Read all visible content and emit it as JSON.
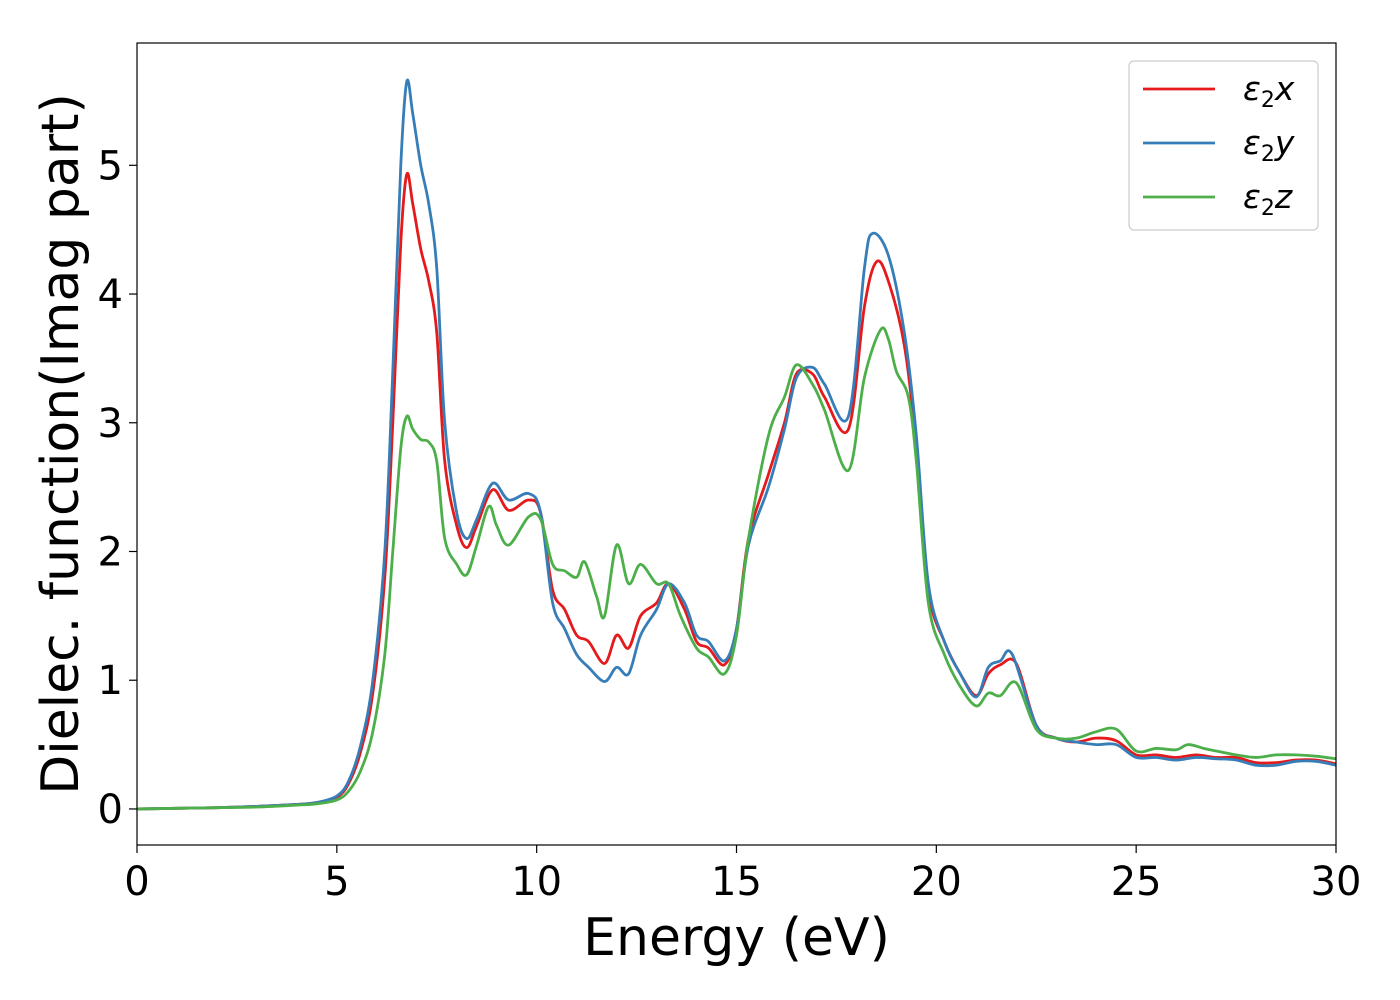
{
  "chart_data": {
    "type": "line",
    "xlabel": "Energy (eV)",
    "ylabel": "Dielec. function(Imag part)",
    "xlim": [
      0,
      30
    ],
    "ylim": [
      -0.28,
      5.95
    ],
    "xticks": [
      0,
      5,
      10,
      15,
      20,
      25,
      30
    ],
    "yticks": [
      0,
      1,
      2,
      3,
      4,
      5
    ],
    "grid": false,
    "legend_position": "top-right",
    "series": [
      {
        "name": "ε2x",
        "legend": {
          "base": "ε",
          "sub": "2",
          "comp": "x"
        },
        "color": "#e41a1c",
        "points": [
          [
            0,
            0.0
          ],
          [
            1,
            0.005
          ],
          [
            2,
            0.01
          ],
          [
            3,
            0.02
          ],
          [
            4,
            0.035
          ],
          [
            4.5,
            0.05
          ],
          [
            5,
            0.09
          ],
          [
            5.3,
            0.2
          ],
          [
            5.6,
            0.45
          ],
          [
            5.9,
            0.9
          ],
          [
            6.2,
            1.8
          ],
          [
            6.4,
            3.0
          ],
          [
            6.6,
            4.4
          ],
          [
            6.75,
            4.93
          ],
          [
            6.9,
            4.7
          ],
          [
            7.1,
            4.35
          ],
          [
            7.3,
            4.1
          ],
          [
            7.5,
            3.7
          ],
          [
            7.7,
            2.7
          ],
          [
            8.0,
            2.2
          ],
          [
            8.25,
            2.03
          ],
          [
            8.5,
            2.2
          ],
          [
            8.9,
            2.48
          ],
          [
            9.3,
            2.32
          ],
          [
            9.8,
            2.4
          ],
          [
            10.1,
            2.3
          ],
          [
            10.4,
            1.7
          ],
          [
            10.7,
            1.55
          ],
          [
            11.0,
            1.35
          ],
          [
            11.3,
            1.3
          ],
          [
            11.7,
            1.13
          ],
          [
            12.0,
            1.35
          ],
          [
            12.3,
            1.25
          ],
          [
            12.6,
            1.5
          ],
          [
            13.0,
            1.6
          ],
          [
            13.3,
            1.75
          ],
          [
            13.7,
            1.55
          ],
          [
            14.0,
            1.3
          ],
          [
            14.3,
            1.25
          ],
          [
            14.7,
            1.12
          ],
          [
            15.0,
            1.4
          ],
          [
            15.3,
            2.1
          ],
          [
            15.8,
            2.6
          ],
          [
            16.2,
            3.0
          ],
          [
            16.5,
            3.38
          ],
          [
            16.9,
            3.38
          ],
          [
            17.2,
            3.2
          ],
          [
            17.8,
            2.95
          ],
          [
            18.2,
            3.9
          ],
          [
            18.5,
            4.25
          ],
          [
            18.8,
            4.1
          ],
          [
            19.2,
            3.6
          ],
          [
            19.5,
            2.8
          ],
          [
            19.8,
            1.7
          ],
          [
            20.2,
            1.3
          ],
          [
            20.6,
            1.05
          ],
          [
            21.0,
            0.88
          ],
          [
            21.3,
            1.05
          ],
          [
            21.6,
            1.12
          ],
          [
            22.0,
            1.13
          ],
          [
            22.5,
            0.65
          ],
          [
            23.0,
            0.55
          ],
          [
            23.5,
            0.52
          ],
          [
            24.0,
            0.55
          ],
          [
            24.5,
            0.53
          ],
          [
            25.0,
            0.42
          ],
          [
            25.5,
            0.42
          ],
          [
            26.0,
            0.4
          ],
          [
            26.5,
            0.42
          ],
          [
            27.0,
            0.4
          ],
          [
            27.5,
            0.4
          ],
          [
            28.0,
            0.36
          ],
          [
            28.5,
            0.36
          ],
          [
            29.0,
            0.38
          ],
          [
            29.5,
            0.38
          ],
          [
            30,
            0.35
          ]
        ]
      },
      {
        "name": "ε2y",
        "legend": {
          "base": "ε",
          "sub": "2",
          "comp": "y"
        },
        "color": "#377eb8",
        "points": [
          [
            0,
            0.0
          ],
          [
            1,
            0.005
          ],
          [
            2,
            0.01
          ],
          [
            3,
            0.02
          ],
          [
            4,
            0.035
          ],
          [
            4.5,
            0.05
          ],
          [
            5,
            0.1
          ],
          [
            5.3,
            0.22
          ],
          [
            5.6,
            0.5
          ],
          [
            5.9,
            1.0
          ],
          [
            6.2,
            2.0
          ],
          [
            6.4,
            3.4
          ],
          [
            6.6,
            5.0
          ],
          [
            6.75,
            5.65
          ],
          [
            6.9,
            5.4
          ],
          [
            7.1,
            5.0
          ],
          [
            7.3,
            4.7
          ],
          [
            7.5,
            4.2
          ],
          [
            7.7,
            3.0
          ],
          [
            8.0,
            2.3
          ],
          [
            8.25,
            2.1
          ],
          [
            8.5,
            2.25
          ],
          [
            8.9,
            2.53
          ],
          [
            9.3,
            2.4
          ],
          [
            9.8,
            2.45
          ],
          [
            10.1,
            2.3
          ],
          [
            10.4,
            1.6
          ],
          [
            10.7,
            1.4
          ],
          [
            11.0,
            1.2
          ],
          [
            11.3,
            1.1
          ],
          [
            11.7,
            0.99
          ],
          [
            12.0,
            1.1
          ],
          [
            12.3,
            1.05
          ],
          [
            12.6,
            1.35
          ],
          [
            13.0,
            1.55
          ],
          [
            13.3,
            1.75
          ],
          [
            13.7,
            1.6
          ],
          [
            14.0,
            1.35
          ],
          [
            14.3,
            1.3
          ],
          [
            14.7,
            1.15
          ],
          [
            15.0,
            1.4
          ],
          [
            15.3,
            2.05
          ],
          [
            15.8,
            2.5
          ],
          [
            16.2,
            2.95
          ],
          [
            16.5,
            3.35
          ],
          [
            16.9,
            3.43
          ],
          [
            17.2,
            3.3
          ],
          [
            17.8,
            3.05
          ],
          [
            18.2,
            4.2
          ],
          [
            18.4,
            4.47
          ],
          [
            18.8,
            4.3
          ],
          [
            19.2,
            3.7
          ],
          [
            19.5,
            2.9
          ],
          [
            19.8,
            1.75
          ],
          [
            20.2,
            1.3
          ],
          [
            20.6,
            1.05
          ],
          [
            21.0,
            0.87
          ],
          [
            21.3,
            1.1
          ],
          [
            21.6,
            1.15
          ],
          [
            21.9,
            1.2
          ],
          [
            22.5,
            0.65
          ],
          [
            23.0,
            0.55
          ],
          [
            23.5,
            0.52
          ],
          [
            24.0,
            0.5
          ],
          [
            24.5,
            0.5
          ],
          [
            25.0,
            0.4
          ],
          [
            25.5,
            0.4
          ],
          [
            26.0,
            0.38
          ],
          [
            26.5,
            0.4
          ],
          [
            27.0,
            0.39
          ],
          [
            27.5,
            0.38
          ],
          [
            28.0,
            0.34
          ],
          [
            28.5,
            0.34
          ],
          [
            29.0,
            0.37
          ],
          [
            29.5,
            0.37
          ],
          [
            30,
            0.34
          ]
        ]
      },
      {
        "name": "ε2z",
        "legend": {
          "base": "ε",
          "sub": "2",
          "comp": "z"
        },
        "color": "#4daf4a",
        "points": [
          [
            0,
            0.0
          ],
          [
            1,
            0.005
          ],
          [
            2,
            0.01
          ],
          [
            3,
            0.015
          ],
          [
            4,
            0.03
          ],
          [
            4.5,
            0.04
          ],
          [
            5,
            0.07
          ],
          [
            5.3,
            0.14
          ],
          [
            5.6,
            0.3
          ],
          [
            5.9,
            0.6
          ],
          [
            6.2,
            1.2
          ],
          [
            6.4,
            2.0
          ],
          [
            6.6,
            2.8
          ],
          [
            6.75,
            3.05
          ],
          [
            6.9,
            2.95
          ],
          [
            7.1,
            2.87
          ],
          [
            7.3,
            2.85
          ],
          [
            7.5,
            2.7
          ],
          [
            7.7,
            2.1
          ],
          [
            8.0,
            1.9
          ],
          [
            8.25,
            1.82
          ],
          [
            8.5,
            2.05
          ],
          [
            8.8,
            2.35
          ],
          [
            9.0,
            2.2
          ],
          [
            9.3,
            2.05
          ],
          [
            9.8,
            2.27
          ],
          [
            10.1,
            2.25
          ],
          [
            10.4,
            1.9
          ],
          [
            10.7,
            1.85
          ],
          [
            11.0,
            1.8
          ],
          [
            11.2,
            1.92
          ],
          [
            11.5,
            1.65
          ],
          [
            11.7,
            1.5
          ],
          [
            12.0,
            2.05
          ],
          [
            12.3,
            1.75
          ],
          [
            12.6,
            1.9
          ],
          [
            13.0,
            1.75
          ],
          [
            13.3,
            1.75
          ],
          [
            13.6,
            1.5
          ],
          [
            14.0,
            1.25
          ],
          [
            14.3,
            1.18
          ],
          [
            14.7,
            1.05
          ],
          [
            15.0,
            1.35
          ],
          [
            15.3,
            2.1
          ],
          [
            15.8,
            2.9
          ],
          [
            16.2,
            3.2
          ],
          [
            16.5,
            3.45
          ],
          [
            16.9,
            3.3
          ],
          [
            17.2,
            3.1
          ],
          [
            17.8,
            2.63
          ],
          [
            18.2,
            3.35
          ],
          [
            18.6,
            3.72
          ],
          [
            18.8,
            3.65
          ],
          [
            19.0,
            3.4
          ],
          [
            19.3,
            3.2
          ],
          [
            19.5,
            2.7
          ],
          [
            19.8,
            1.6
          ],
          [
            20.2,
            1.2
          ],
          [
            20.6,
            0.95
          ],
          [
            21.0,
            0.8
          ],
          [
            21.3,
            0.9
          ],
          [
            21.6,
            0.88
          ],
          [
            22.0,
            0.98
          ],
          [
            22.5,
            0.62
          ],
          [
            23.0,
            0.55
          ],
          [
            23.5,
            0.55
          ],
          [
            24.0,
            0.6
          ],
          [
            24.5,
            0.62
          ],
          [
            25.0,
            0.45
          ],
          [
            25.5,
            0.47
          ],
          [
            26.0,
            0.46
          ],
          [
            26.3,
            0.5
          ],
          [
            26.7,
            0.47
          ],
          [
            27.0,
            0.45
          ],
          [
            27.5,
            0.42
          ],
          [
            28.0,
            0.4
          ],
          [
            28.5,
            0.42
          ],
          [
            29.0,
            0.42
          ],
          [
            29.5,
            0.41
          ],
          [
            30,
            0.39
          ]
        ]
      }
    ]
  }
}
